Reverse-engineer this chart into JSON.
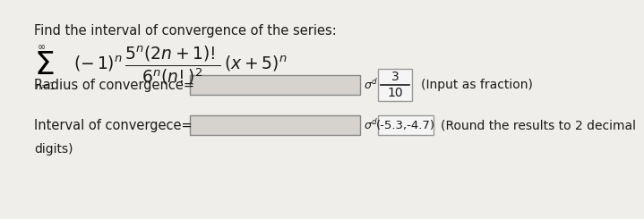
{
  "bg_color": "#f0eeea",
  "title_text": "Find the interval of convergence of the series:",
  "title_fontsize": 10.5,
  "label1": "Radius of convergence=",
  "label2": "Interval of convergece=",
  "answer1_numerator": "3",
  "answer1_denominator": "10",
  "answer2": "(-5.3,-4.7)",
  "hint1": "(Input as fraction)",
  "hint2": "(Round the results to 2 decimal",
  "hint2b": "digits)",
  "input_box_color": "#d6d3ce",
  "answer_box_color": "#f5f5f5",
  "answer_box_border": "#999999",
  "text_color": "#1a1a1a",
  "sigma_color": "#000000",
  "label_fontsize": 10.5,
  "hint_fontsize": 10.0,
  "formula_fontsize": 13.5,
  "sigma_fontsize": 26
}
